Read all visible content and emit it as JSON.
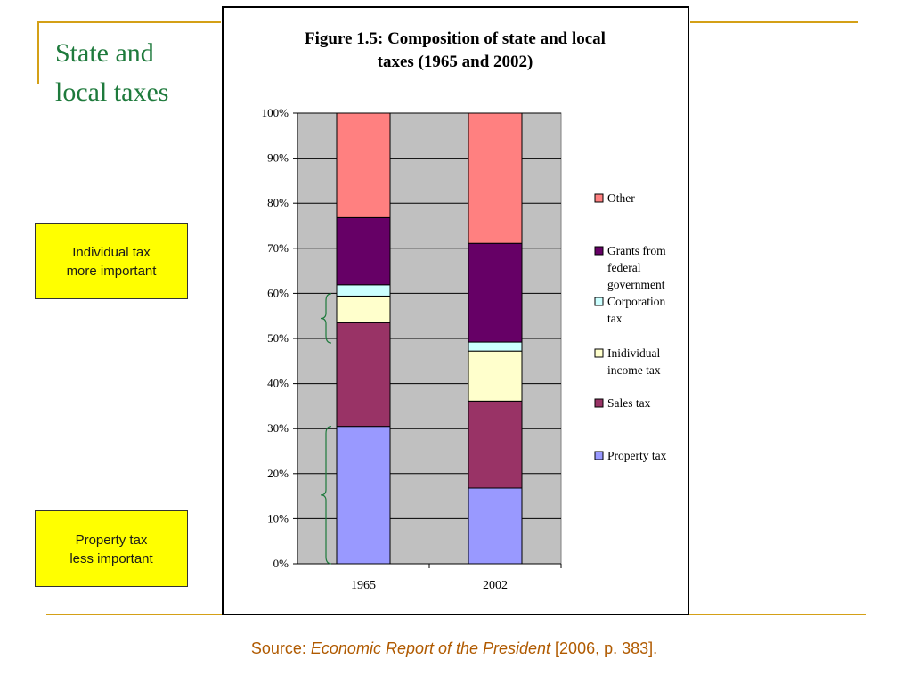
{
  "slide": {
    "title_line1": "State and",
    "title_line2": "local taxes"
  },
  "callouts": {
    "individual": {
      "line1": "Individual tax",
      "line2": "more important"
    },
    "property": {
      "line1": "Property tax",
      "line2": "less important"
    }
  },
  "source": {
    "prefix": "Source: ",
    "title": "Economic Report of the President",
    "suffix": " [2006, p. 383]."
  },
  "colors": {
    "accent_rule": "#D4A017",
    "title_green": "#1E7A3C",
    "callout_yellow": "#FFFF00",
    "source_orange": "#B05A00",
    "plot_bg": "#C0C0C0",
    "bracket_green": "#1E7A3C"
  },
  "chart_data": {
    "type": "bar",
    "stacked": true,
    "title_line1": "Figure 1.5: Composition of state and local",
    "title_line2": "taxes (1965 and 2002)",
    "categories": [
      "1965",
      "2002"
    ],
    "y_ticks": [
      "0%",
      "10%",
      "20%",
      "30%",
      "40%",
      "50%",
      "60%",
      "70%",
      "80%",
      "90%",
      "100%"
    ],
    "ylim": [
      0,
      100
    ],
    "grid": true,
    "legend_position": "right",
    "series": [
      {
        "name": "Property tax",
        "color": "#9999FF",
        "values": [
          30.5,
          16.8
        ]
      },
      {
        "name": "Sales tax",
        "color": "#993366",
        "values": [
          23.0,
          19.3
        ]
      },
      {
        "name": "Inidividual income tax",
        "color": "#FFFFCC",
        "values": [
          5.9,
          11.1
        ]
      },
      {
        "name": "Corporation tax",
        "color": "#CCFFFF",
        "values": [
          2.5,
          2.0
        ]
      },
      {
        "name": "Grants from federal government",
        "color": "#660066",
        "values": [
          14.9,
          21.9
        ]
      },
      {
        "name": "Other",
        "color": "#FF8080",
        "values": [
          23.2,
          28.9
        ]
      }
    ],
    "legend_order": [
      {
        "lines": [
          "Other"
        ],
        "series": 5
      },
      {
        "lines": [
          "Grants from",
          "federal",
          "government"
        ],
        "series": 4
      },
      {
        "lines": [
          "Corporation",
          "tax"
        ],
        "series": 3
      },
      {
        "lines": [
          "Inidividual",
          "income tax"
        ],
        "series": 2
      },
      {
        "lines": [
          "Sales tax"
        ],
        "series": 1
      },
      {
        "lines": [
          "Property tax"
        ],
        "series": 0
      }
    ]
  }
}
